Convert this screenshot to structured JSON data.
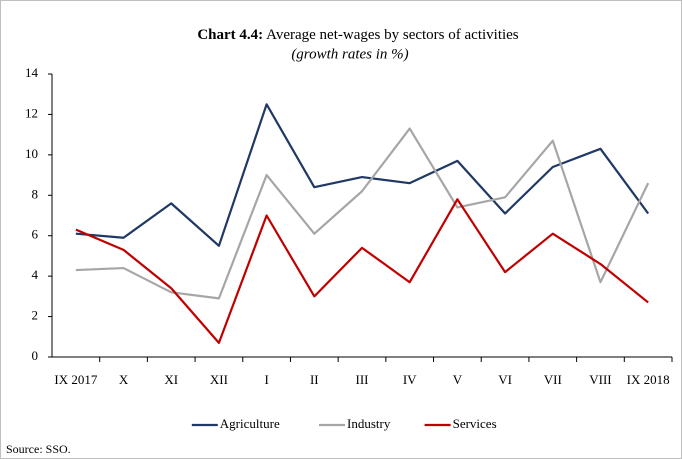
{
  "chart_data": {
    "type": "line",
    "title_prefix": "Chart 4.4:",
    "title": "Average net-wages by sectors of activities",
    "subtitle": "(growth rates in %)",
    "source": "Source: SSO.",
    "categories": [
      "IX 2017",
      "X",
      "XI",
      "XII",
      "I",
      "II",
      "III",
      "IV",
      "V",
      "VI",
      "VII",
      "VIII",
      "IX 2018"
    ],
    "series": [
      {
        "name": "Agriculture",
        "color": "#1f3864",
        "values": [
          6.1,
          5.9,
          7.6,
          5.5,
          12.5,
          8.4,
          8.9,
          8.6,
          9.7,
          7.1,
          9.4,
          10.3,
          7.1
        ]
      },
      {
        "name": "Industry",
        "color": "#a6a6a6",
        "values": [
          4.3,
          4.4,
          3.2,
          2.9,
          9.0,
          6.1,
          8.2,
          11.3,
          7.4,
          7.9,
          10.7,
          3.7,
          8.6
        ]
      },
      {
        "name": "Services",
        "color": "#c00000",
        "values": [
          6.3,
          5.3,
          3.4,
          0.7,
          7.0,
          3.0,
          5.4,
          3.7,
          7.8,
          4.2,
          6.1,
          4.6,
          2.7
        ]
      }
    ],
    "ylim": [
      0,
      14
    ],
    "yticks": [
      0,
      2,
      4,
      6,
      8,
      10,
      12,
      14
    ],
    "grid": false,
    "legend": "bottom"
  }
}
